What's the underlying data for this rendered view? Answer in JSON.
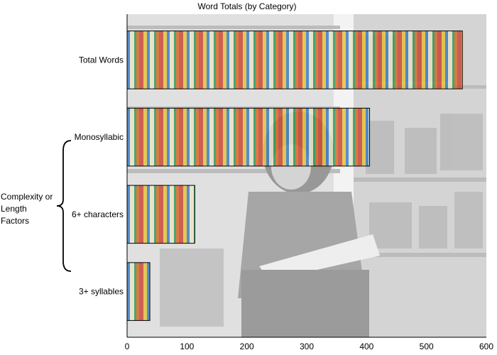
{
  "chart_data": {
    "type": "bar",
    "orientation": "horizontal",
    "title": "Word Totals (by Category)",
    "categories": [
      "Total Words",
      "Monosyllabic",
      "6+ characters",
      "3+ syllables"
    ],
    "values": [
      560,
      405,
      113,
      38
    ],
    "group_label_lines": [
      "Complexity or",
      "Length",
      "Factors"
    ],
    "xlim": [
      0,
      600
    ],
    "xticks": [
      "0",
      "100",
      "200",
      "300",
      "400",
      "500",
      "600"
    ],
    "background": "photo of a child reading a picture book in front of bookstore shelves (grayscale), with bars revealing full-color photo",
    "colors": {
      "bar_outline": "#000000",
      "axis": "#000000",
      "plot_wash": "#bfbfbf"
    }
  }
}
